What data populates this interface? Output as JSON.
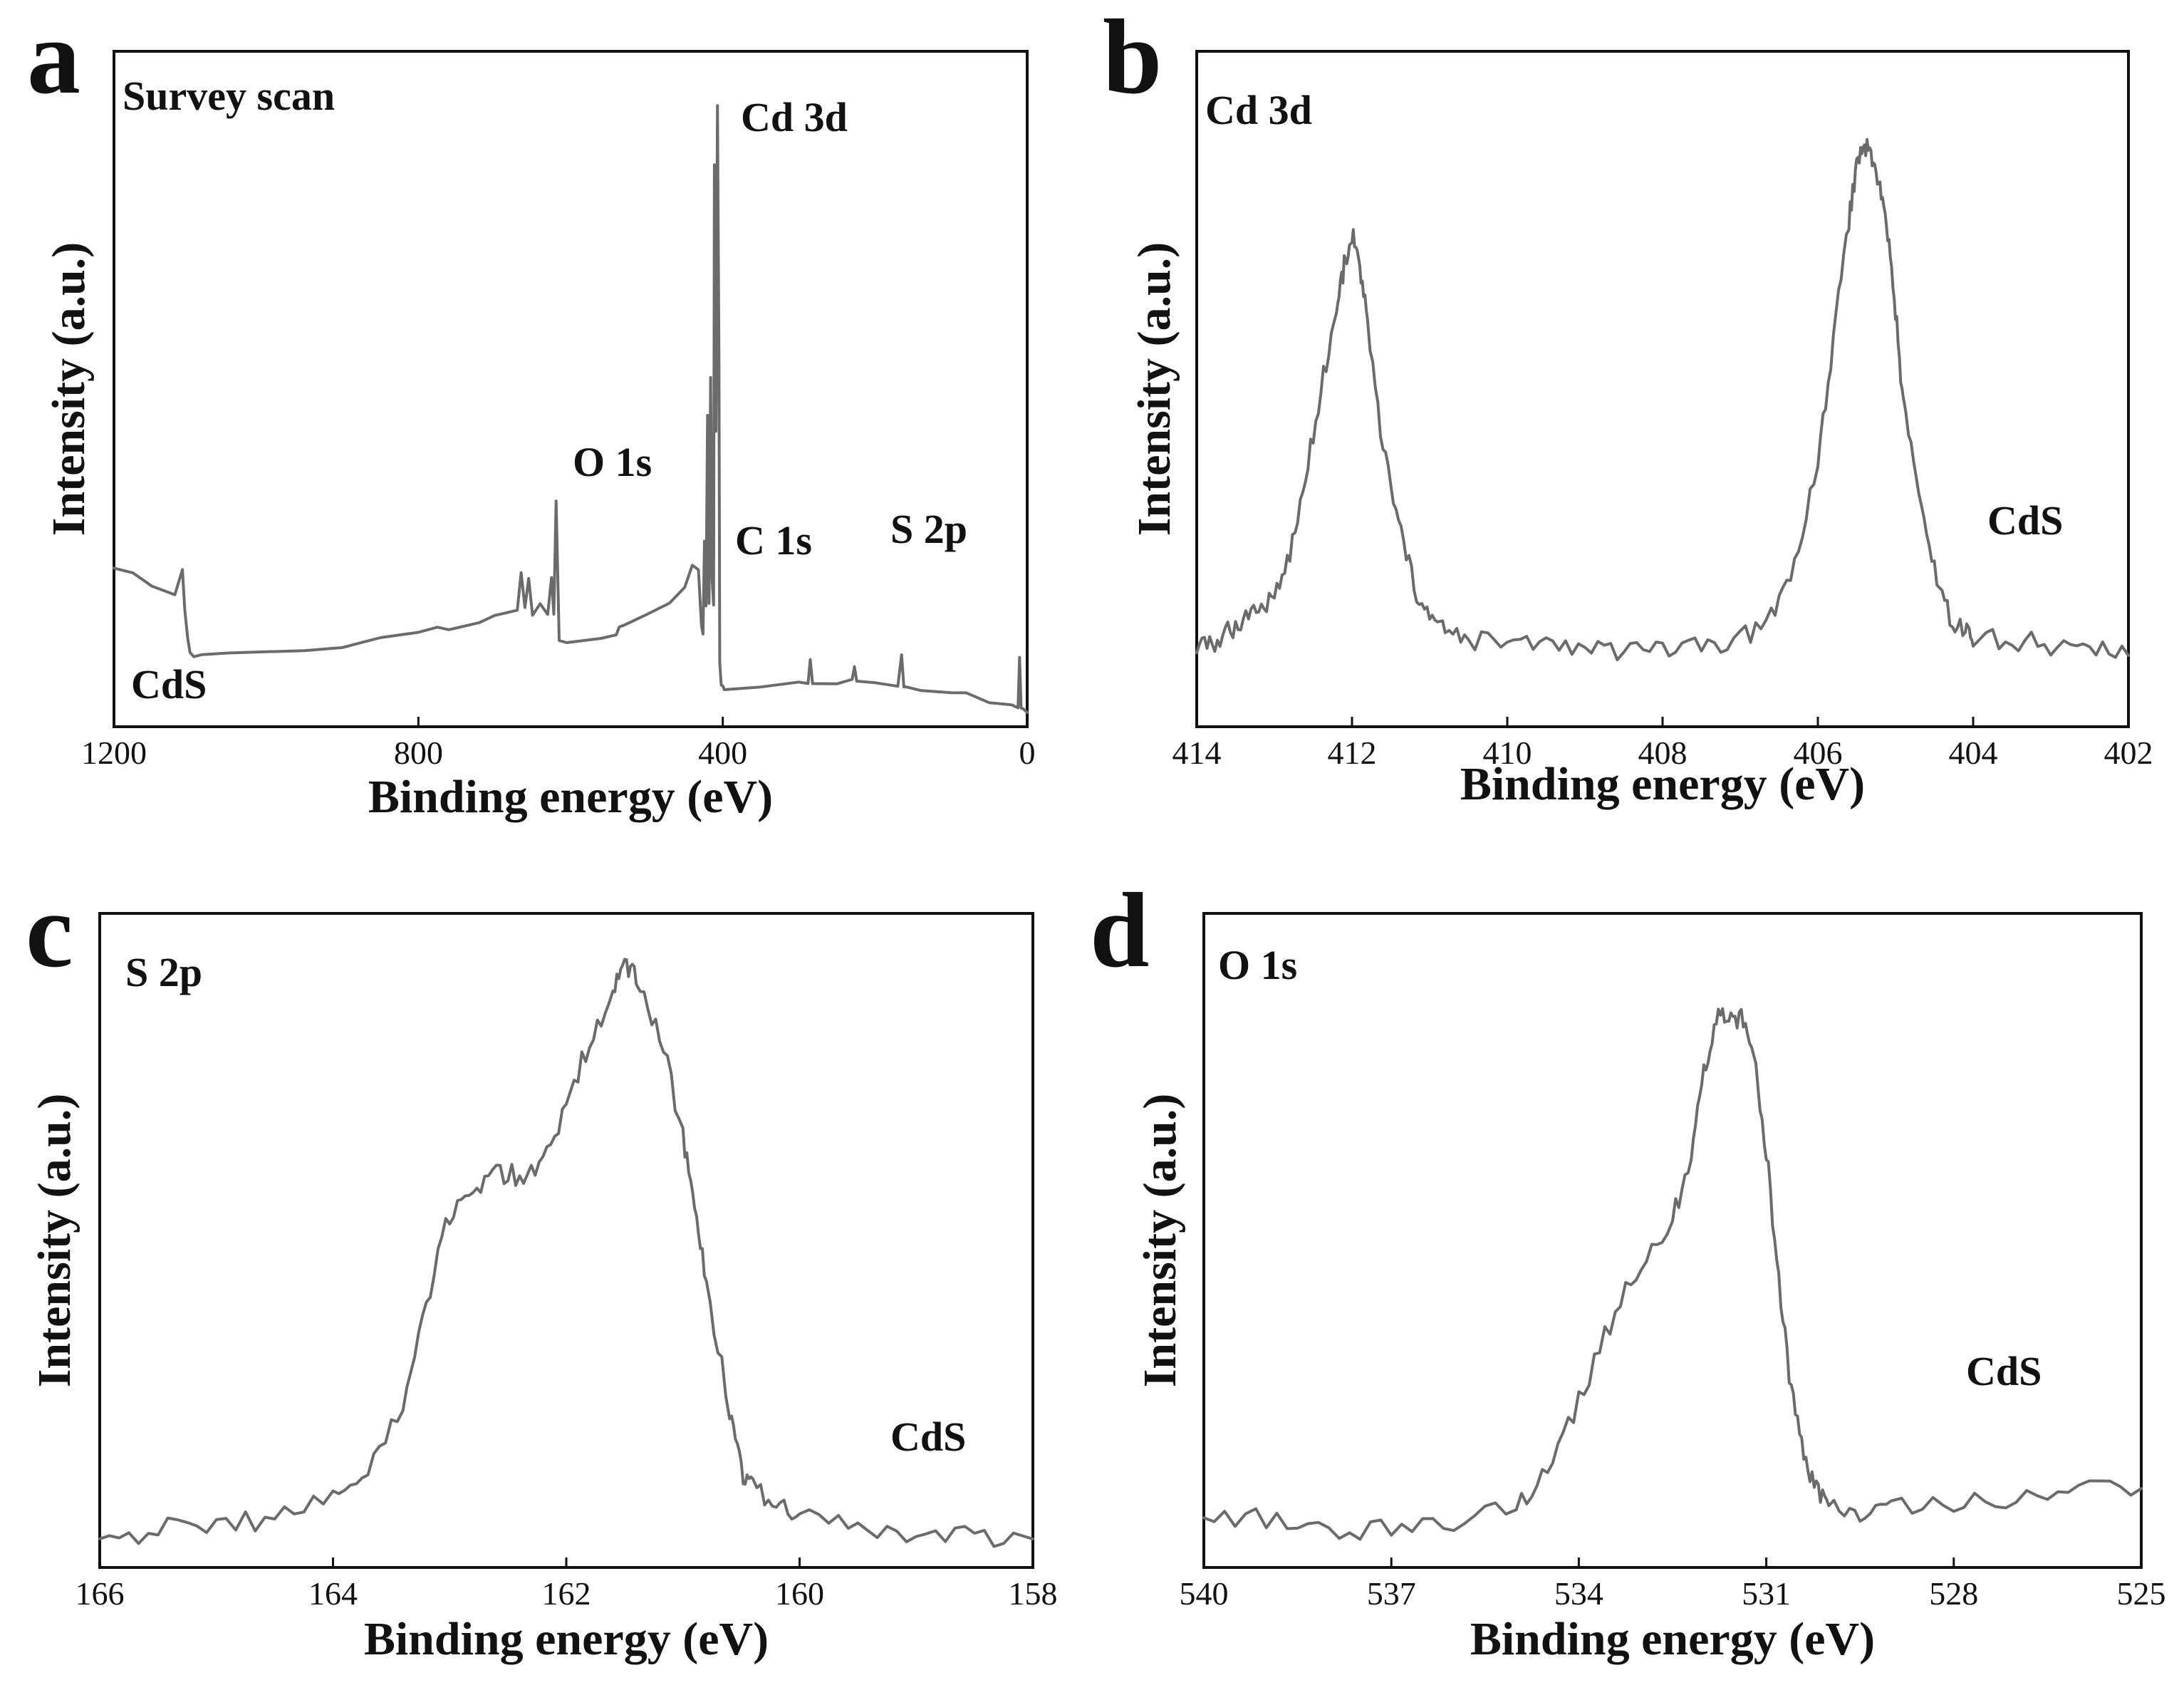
{
  "colors": {
    "trace": "#6b6b6b",
    "axis": "#111111"
  },
  "chart_data": [
    {
      "type": "line",
      "panel": "a",
      "title": "Survey scan",
      "sample": "CdS",
      "xlabel": "Binding energy (eV)",
      "ylabel": "Intensity (a.u.)",
      "xlim": [
        1200,
        0
      ],
      "ylim": [
        0,
        100
      ],
      "xticks": [
        1200,
        800,
        400,
        0
      ],
      "peak_labels": [
        "Cd 3d",
        "O 1s",
        "C 1s",
        "S 2p"
      ],
      "series": [
        {
          "name": "CdS",
          "x": [
            1200,
            1175,
            1150,
            1120,
            1110,
            1107,
            1103,
            1100,
            1095,
            1085,
            1050,
            1000,
            950,
            900,
            850,
            800,
            775,
            760,
            720,
            700,
            670,
            665,
            660,
            655,
            650,
            640,
            630,
            625,
            622,
            619,
            615,
            605,
            560,
            540,
            536,
            530,
            500,
            470,
            450,
            440,
            432,
            428,
            426,
            424,
            422,
            420,
            418,
            416,
            414,
            412,
            411,
            409,
            407,
            405,
            404,
            402,
            400,
            398,
            350,
            300,
            288,
            285,
            282,
            250,
            230,
            227,
            224,
            200,
            170,
            165,
            162,
            159,
            140,
            100,
            80,
            50,
            20,
            12,
            10,
            8,
            5,
            0
          ],
          "values": [
            45,
            43,
            40,
            38,
            44,
            34,
            26,
            23,
            22,
            22,
            22.5,
            23,
            23.5,
            24.5,
            26,
            28,
            29.5,
            28.5,
            30.5,
            32,
            34,
            44,
            34,
            42,
            33,
            35,
            33,
            42,
            33,
            62,
            26,
            25,
            26,
            27,
            29,
            30,
            33,
            36,
            40,
            46,
            44,
            30,
            28,
            52,
            35,
            85,
            35,
            95,
            42,
            35,
            150,
            80,
            165,
            100,
            20,
            14,
            13.5,
            13.5,
            14,
            15,
            15,
            21,
            15,
            15,
            15,
            19,
            15,
            14.5,
            14,
            22,
            14,
            13.5,
            13,
            12,
            11.5,
            9.5,
            8.5,
            7.8,
            22,
            7.5,
            7.5,
            7
          ]
        }
      ]
    },
    {
      "type": "line",
      "panel": "b",
      "title": "Cd 3d",
      "sample": "CdS",
      "xlabel": "Binding energy (eV)",
      "ylabel": "Intensity (a.u.)",
      "xlim": [
        414,
        402
      ],
      "ylim": [
        0,
        100
      ],
      "xticks": [
        414,
        412,
        410,
        408,
        406,
        404,
        402
      ],
      "peak_labels": [],
      "series": [
        {
          "name": "CdS",
          "x": [
            414,
            413.8,
            413.6,
            413.4,
            413.2,
            413,
            412.8,
            412.6,
            412.4,
            412.2,
            412.1,
            412,
            411.9,
            411.8,
            411.6,
            411.4,
            411.2,
            411,
            410.8,
            410.5,
            410,
            409.5,
            409,
            408.5,
            408,
            407.5,
            407,
            406.6,
            406.3,
            406,
            405.8,
            405.6,
            405.5,
            405.4,
            405.3,
            405.2,
            405.1,
            405,
            404.9,
            404.7,
            404.5,
            404.3,
            404.1,
            404,
            403.5,
            403,
            402.5,
            402
          ],
          "values": [
            16,
            16.5,
            18,
            20,
            21,
            23,
            28,
            38,
            50,
            60,
            66,
            70,
            66,
            58,
            42,
            32,
            24,
            20,
            18,
            17,
            16.5,
            16.5,
            16,
            15.5,
            15.5,
            16,
            17,
            20,
            27,
            40,
            56,
            72,
            79,
            82,
            80,
            76,
            70,
            60,
            48,
            36,
            26,
            20,
            18,
            17.5,
            17,
            16.5,
            16,
            15
          ]
        }
      ]
    },
    {
      "type": "line",
      "panel": "c",
      "title": "S 2p",
      "sample": "CdS",
      "xlabel": "Binding energy (eV)",
      "ylabel": "Intensity (a.u.)",
      "xlim": [
        166,
        158
      ],
      "ylim": [
        0,
        100
      ],
      "xticks": [
        166,
        164,
        162,
        160,
        158
      ],
      "peak_labels": [],
      "series": [
        {
          "name": "CdS",
          "x": [
            166,
            165.5,
            165,
            164.5,
            164,
            163.7,
            163.4,
            163.2,
            163,
            162.8,
            162.6,
            162.4,
            162.2,
            162,
            161.8,
            161.6,
            161.5,
            161.4,
            161.2,
            161,
            160.9,
            160.8,
            160.6,
            160.5,
            160.4,
            160.2,
            160,
            159.5,
            159,
            158.5,
            158
          ],
          "values": [
            8,
            8.5,
            9,
            10,
            12,
            15,
            22,
            33,
            43,
            46,
            48,
            47,
            49,
            55,
            62,
            68,
            70,
            69,
            63,
            52,
            44,
            35,
            22,
            15,
            13,
            11.5,
            10,
            8.5,
            8,
            8,
            7.5
          ]
        }
      ]
    },
    {
      "type": "line",
      "panel": "d",
      "title": "O 1s",
      "sample": "CdS",
      "xlabel": "Binding energy (eV)",
      "ylabel": "Intensity (a.u.)",
      "xlim": [
        540,
        525
      ],
      "ylim": [
        0,
        100
      ],
      "xticks": [
        540,
        537,
        534,
        531,
        528,
        525
      ],
      "peak_labels": [],
      "series": [
        {
          "name": "CdS",
          "x": [
            540,
            539,
            538,
            537,
            536,
            535,
            534.5,
            534,
            533.5,
            533,
            532.5,
            532.2,
            532,
            531.8,
            531.6,
            531.4,
            531.2,
            531,
            530.8,
            530.6,
            530.4,
            530.2,
            530,
            529.5,
            529,
            528,
            527,
            526,
            525
          ],
          "values": [
            13,
            12.5,
            11.5,
            11,
            12,
            14,
            18,
            26,
            35,
            42,
            47,
            55,
            64,
            70,
            71,
            70,
            66,
            55,
            40,
            27,
            20,
            16,
            14,
            13,
            13.5,
            14,
            15,
            16,
            16
          ]
        }
      ]
    }
  ]
}
